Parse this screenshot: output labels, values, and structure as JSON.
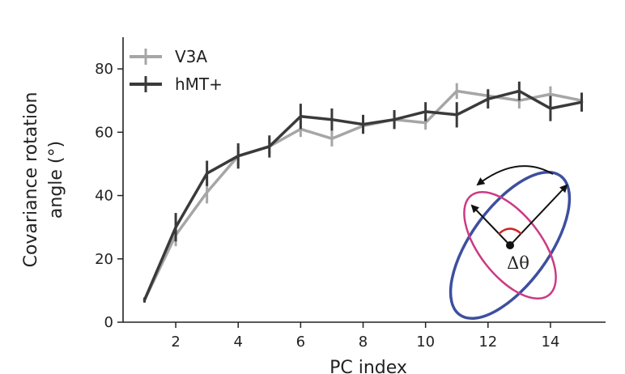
{
  "chart_data": {
    "type": "line",
    "title": "",
    "xlabel": "PC index",
    "ylabel_lines": [
      "Covariance rotation",
      "angle (°)"
    ],
    "xlim": [
      0.5,
      15.5
    ],
    "ylim": [
      0,
      90
    ],
    "xticks": [
      2,
      4,
      6,
      8,
      10,
      12,
      14
    ],
    "yticks": [
      0,
      20,
      40,
      60,
      80
    ],
    "grid": false,
    "legend_position": "top-left",
    "series": [
      {
        "name": "V3A",
        "color": "#a6a6a6",
        "x": [
          1,
          2,
          3,
          4,
          5,
          6,
          7,
          8,
          9,
          10,
          11,
          12,
          13,
          14,
          15
        ],
        "y": [
          7,
          27.5,
          41,
          52.5,
          55.5,
          61,
          58,
          62,
          64,
          63,
          73,
          71.5,
          70,
          72,
          70
        ],
        "err": [
          0.8,
          3.5,
          3.5,
          3,
          2.5,
          2.5,
          2.5,
          2.2,
          2.2,
          2.2,
          2.5,
          2.2,
          2.5,
          2.5,
          2
        ]
      },
      {
        "name": "hMT+",
        "color": "#3a3a3a",
        "x": [
          1,
          2,
          3,
          4,
          5,
          6,
          7,
          8,
          9,
          10,
          11,
          12,
          13,
          14,
          15
        ],
        "y": [
          7,
          30,
          47,
          52.5,
          55.5,
          65,
          64,
          62.5,
          64,
          66.5,
          65.5,
          70.5,
          73,
          67.5,
          69.5
        ],
        "err": [
          0.8,
          4.5,
          4,
          4,
          3.5,
          4,
          3.5,
          3,
          3,
          3,
          4,
          3,
          3,
          4,
          3
        ]
      }
    ],
    "inset": {
      "label": "Δθ",
      "outer_ellipse_color": "#3d4f9e",
      "inner_ellipse_color": "#cc3a84",
      "angle_arc_color": "#cc2222"
    }
  }
}
